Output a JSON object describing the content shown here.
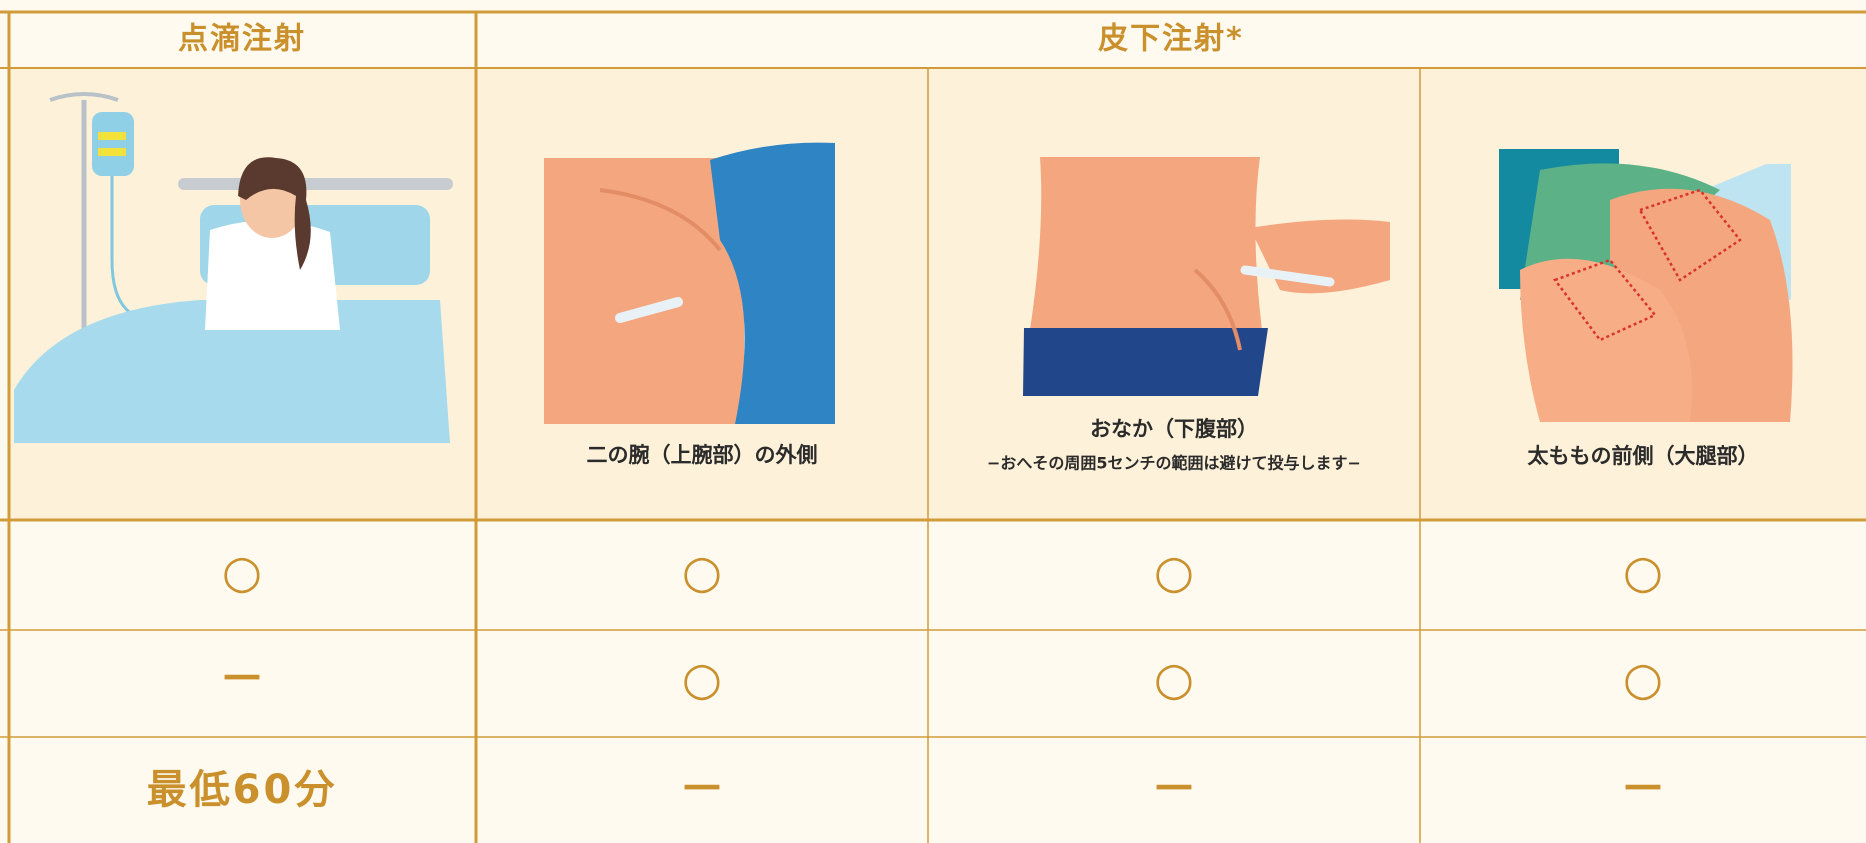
{
  "table": {
    "header": [
      "点滴注射",
      "皮下注射*"
    ],
    "sites": [
      {
        "label": "二の腕（上腕部）の外側"
      },
      {
        "label": "おなか（下腹部）",
        "note": "−おへその周囲5センチの範囲は避けて投与します−"
      },
      {
        "label": "太ももの前側（大腿部）"
      }
    ],
    "rows": [
      [
        "○",
        "○",
        "○",
        "○"
      ],
      [
        "－",
        "○",
        "○",
        "○"
      ],
      [
        "最低60分",
        "－",
        "－",
        "－"
      ]
    ]
  }
}
